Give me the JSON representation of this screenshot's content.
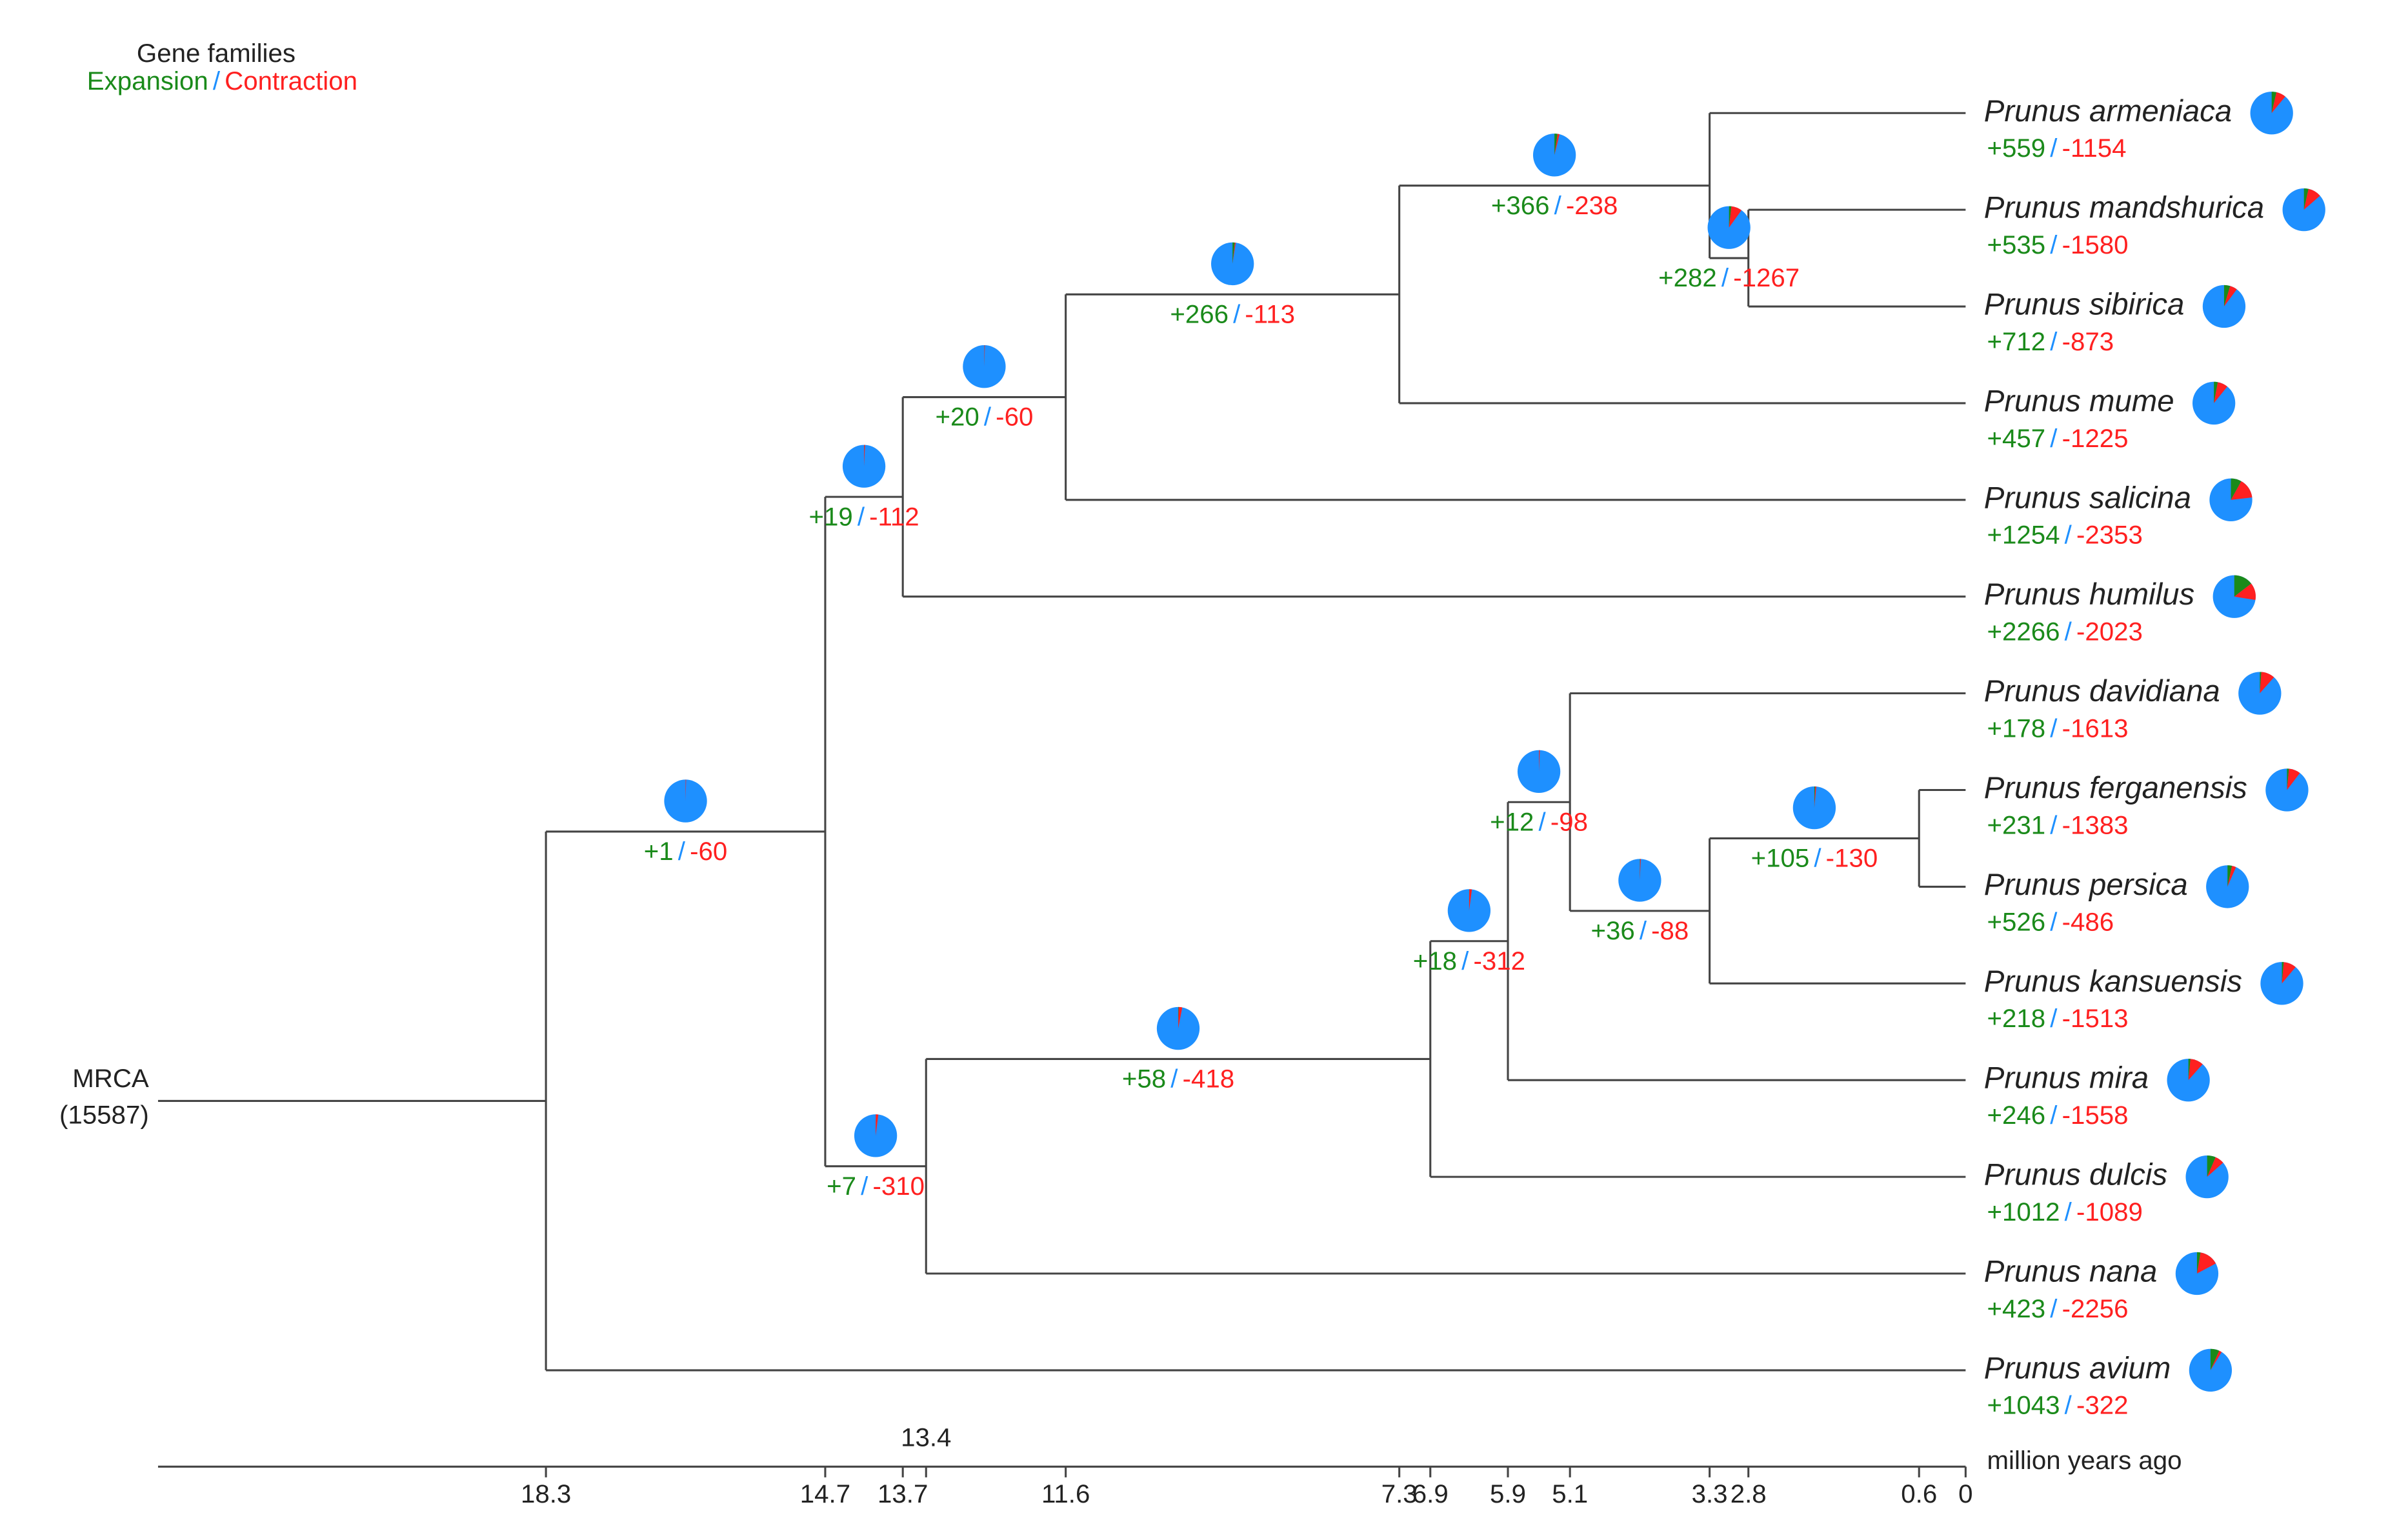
{
  "legend": {
    "title": "Gene families",
    "expansion": "Expansion",
    "separator": "/",
    "contraction": "Contraction"
  },
  "root": {
    "label": "MRCA",
    "count": "(15587)"
  },
  "axis": {
    "title": "million years ago",
    "range": [
      23.3,
      0
    ],
    "ticks": [
      18.3,
      14.7,
      13.7,
      13.4,
      11.6,
      7.3,
      6.9,
      5.9,
      5.1,
      3.3,
      2.8,
      0.6,
      0
    ]
  },
  "tree": {
    "age": 18.3,
    "children": [
      {
        "age": 14.7,
        "expansion": "+1",
        "contraction": "-60",
        "children": [
          {
            "age": 13.7,
            "expansion": "+19",
            "contraction": "-112",
            "children": [
              {
                "age": 11.6,
                "expansion": "+20",
                "contraction": "-60",
                "children": [
                  {
                    "age": 7.3,
                    "expansion": "+266",
                    "contraction": "-113",
                    "children": [
                      {
                        "age": 3.3,
                        "expansion": "+366",
                        "contraction": "-238",
                        "children": [
                          {
                            "name": "Prunus armeniaca",
                            "expansion": "+559",
                            "contraction": "-1154"
                          },
                          {
                            "age": 2.8,
                            "expansion": "+282",
                            "contraction": "-1267",
                            "children": [
                              {
                                "name": "Prunus mandshurica",
                                "expansion": "+535",
                                "contraction": "-1580"
                              },
                              {
                                "name": "Prunus sibirica",
                                "expansion": "+712",
                                "contraction": "-873"
                              }
                            ]
                          }
                        ]
                      },
                      {
                        "name": "Prunus mume",
                        "expansion": "+457",
                        "contraction": "-1225"
                      }
                    ]
                  },
                  {
                    "name": "Prunus salicina",
                    "expansion": "+1254",
                    "contraction": "-2353"
                  }
                ]
              },
              {
                "name": "Prunus humilus",
                "expansion": "+2266",
                "contraction": "-2023"
              }
            ]
          },
          {
            "age": 13.4,
            "expansion": "+7",
            "contraction": "-310",
            "children": [
              {
                "age": 6.9,
                "expansion": "+58",
                "contraction": "-418",
                "children": [
                  {
                    "age": 5.9,
                    "expansion": "+18",
                    "contraction": "-312",
                    "children": [
                      {
                        "age": 5.1,
                        "expansion": "+12",
                        "contraction": "-98",
                        "children": [
                          {
                            "name": "Prunus davidiana",
                            "expansion": "+178",
                            "contraction": "-1613"
                          },
                          {
                            "age": 3.3,
                            "expansion": "+36",
                            "contraction": "-88",
                            "children": [
                              {
                                "age": 0.6,
                                "expansion": "+105",
                                "contraction": "-130",
                                "children": [
                                  {
                                    "name": "Prunus ferganensis",
                                    "expansion": "+231",
                                    "contraction": "-1383"
                                  },
                                  {
                                    "name": "Prunus persica",
                                    "expansion": "+526",
                                    "contraction": "-486"
                                  }
                                ]
                              },
                              {
                                "name": "Prunus kansuensis",
                                "expansion": "+218",
                                "contraction": "-1513"
                              }
                            ]
                          }
                        ]
                      },
                      {
                        "name": "Prunus mira",
                        "expansion": "+246",
                        "contraction": "-1558"
                      }
                    ]
                  },
                  {
                    "name": "Prunus dulcis",
                    "expansion": "+1012",
                    "contraction": "-1089"
                  }
                ]
              },
              {
                "name": "Prunus nana",
                "expansion": "+423",
                "contraction": "-2256"
              }
            ]
          }
        ]
      },
      {
        "name": "Prunus avium",
        "expansion": "+1043",
        "contraction": "-322"
      }
    ]
  }
}
